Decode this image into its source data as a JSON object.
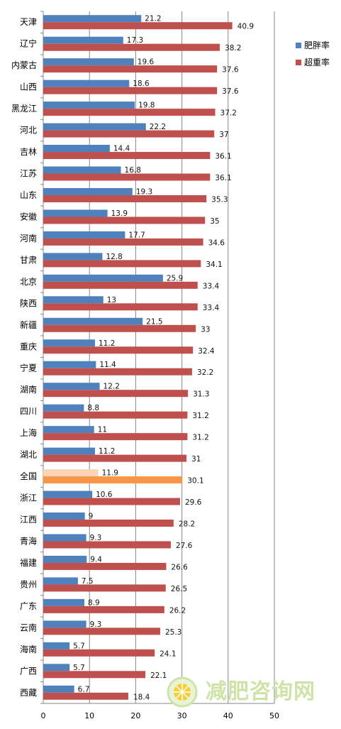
{
  "chart_data": {
    "type": "bar",
    "orientation": "horizontal",
    "categories": [
      "天津",
      "辽宁",
      "内蒙古",
      "山西",
      "黑龙江",
      "河北",
      "吉林",
      "江苏",
      "山东",
      "安徽",
      "河南",
      "甘肃",
      "北京",
      "陕西",
      "新疆",
      "重庆",
      "宁夏",
      "湖南",
      "四川",
      "上海",
      "湖北",
      "全国",
      "浙江",
      "江西",
      "青海",
      "福建",
      "贵州",
      "广东",
      "云南",
      "海南",
      "广西",
      "西藏"
    ],
    "series": [
      {
        "name": "肥胖率",
        "color": "#4f81bd",
        "values": [
          21.2,
          17.3,
          19.6,
          18.6,
          19.8,
          22.2,
          14.4,
          16.8,
          19.3,
          13.9,
          17.7,
          12.8,
          25.9,
          13,
          21.5,
          11.2,
          11.4,
          12.2,
          8.8,
          11,
          11.2,
          11.9,
          10.6,
          9,
          9.3,
          9.4,
          7.5,
          8.9,
          9.3,
          5.7,
          5.7,
          6.7
        ]
      },
      {
        "name": "超重率",
        "color": "#c0504d",
        "values": [
          40.9,
          38.2,
          37.6,
          37.6,
          37.2,
          37,
          36.1,
          36.1,
          35.3,
          35,
          34.6,
          34.1,
          33.4,
          33.4,
          33,
          32.4,
          32.2,
          31.3,
          31.2,
          31.2,
          31,
          30.1,
          29.6,
          28.2,
          27.6,
          26.6,
          26.5,
          26.2,
          25.3,
          24.1,
          22.1,
          18.4
        ]
      }
    ],
    "value_labels": {
      "肥胖率": [
        "21.2",
        "17.3",
        "19.6",
        "18.6",
        "19.8",
        "22.2",
        "14.4",
        "16.8",
        "19.3",
        "13.9",
        "17.7",
        "12.8",
        "25.9",
        "13",
        "21.5",
        "11.2",
        "11.4",
        "12.2",
        "8.8",
        "11",
        "11.2",
        "11.9",
        "10.6",
        "9",
        "9.3",
        "9.4",
        "7.5",
        "8.9",
        "9.3",
        "5.7",
        "5.7",
        "6.7"
      ],
      "超重率": [
        "40.9",
        "38.2",
        "37.6",
        "37.6",
        "37.2",
        "37",
        "36.1",
        "36.1",
        "35.3",
        "35",
        "34.6",
        "34.1",
        "33.4",
        "33.4",
        "33",
        "32.4",
        "32.2",
        "31.3",
        "31.2",
        "31.2",
        "31",
        "30.1",
        "29.6",
        "28.2",
        "27.6",
        "26.6",
        "26.5",
        "26.2",
        "25.3",
        "24.1",
        "22.1",
        "18.4"
      ]
    },
    "highlight": {
      "category": "全国",
      "colors": {
        "肥胖率": "#fcd5b4",
        "超重率": "#f79646"
      }
    },
    "xlim": [
      0,
      50
    ],
    "xticks": [
      "0",
      "10",
      "20",
      "30",
      "40",
      "50"
    ],
    "xtick_values": [
      0,
      10,
      20,
      30,
      40,
      50
    ],
    "grid": true,
    "legend_position": "right",
    "title": "",
    "xlabel": "",
    "ylabel": ""
  },
  "watermark": {
    "text": "减肥咨询网",
    "colors": {
      "ring": "#cfe3a8",
      "fill": "#e9f3d6",
      "center": "#f4cf3c"
    }
  }
}
